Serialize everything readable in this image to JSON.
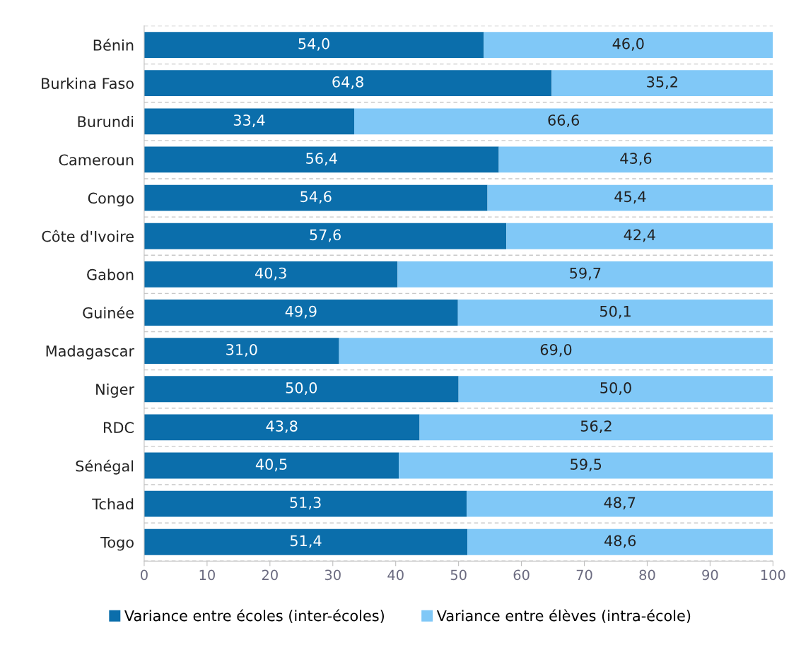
{
  "chart_data": {
    "type": "bar",
    "orientation": "horizontal",
    "stacked": true,
    "categories": [
      "Bénin",
      "Burkina Faso",
      "Burundi",
      "Cameroun",
      "Congo",
      "Côte d'Ivoire",
      "Gabon",
      "Guinée",
      "Madagascar",
      "Niger",
      "RDC",
      "Sénégal",
      "Tchad",
      "Togo"
    ],
    "series": [
      {
        "name": "Variance entre écoles (inter-écoles)",
        "color": "#0b6eab",
        "values": [
          54.0,
          64.8,
          33.4,
          56.4,
          54.6,
          57.6,
          40.3,
          49.9,
          31.0,
          50.0,
          43.8,
          40.5,
          51.3,
          51.4
        ],
        "value_labels": [
          "54,0",
          "64,8",
          "33,4",
          "56,4",
          "54,6",
          "57,6",
          "40,3",
          "49,9",
          "31,0",
          "50,0",
          "43,8",
          "40,5",
          "51,3",
          "51,4"
        ]
      },
      {
        "name": "Variance entre élèves (intra-école)",
        "color": "#80c8f7",
        "values": [
          46.0,
          35.2,
          66.6,
          43.6,
          45.4,
          42.4,
          59.7,
          50.1,
          69.0,
          50.0,
          56.2,
          59.5,
          48.7,
          48.6
        ],
        "value_labels": [
          "46,0",
          "35,2",
          "66,6",
          "43,6",
          "45,4",
          "42,4",
          "59,7",
          "50,1",
          "69,0",
          "50,0",
          "56,2",
          "59,5",
          "48,7",
          "48,6"
        ]
      }
    ],
    "xlim": [
      0,
      100
    ],
    "xticks": [
      0,
      10,
      20,
      30,
      40,
      50,
      60,
      70,
      80,
      90,
      100
    ],
    "grid": "y",
    "legend": "bottom"
  }
}
